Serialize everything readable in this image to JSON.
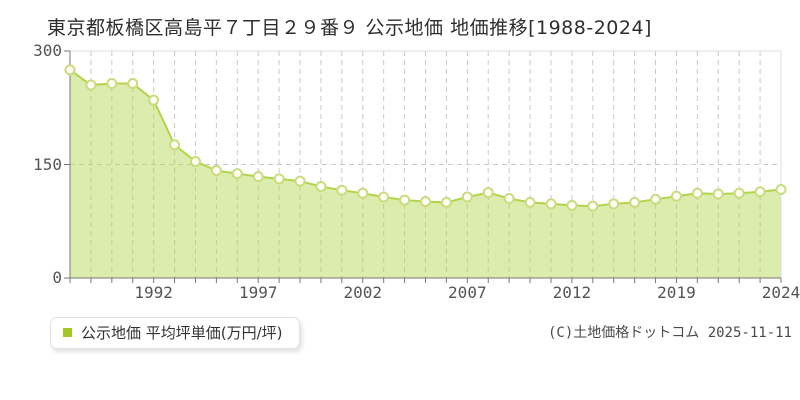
{
  "title": "東京都板橋区高島平７丁目２９番９ 公示地価 地価推移[1988-2024]",
  "legend": {
    "label": "公示地価 平均坪単価(万円/坪)",
    "swatch_color": "#a3c824"
  },
  "footer": {
    "copyright": "(C)土地価格ドットコム 2025-11-11"
  },
  "chart_data": {
    "type": "area",
    "title": "東京都板橋区高島平７丁目２９番９ 公示地価 地価推移[1988-2024]",
    "series_name": "公示地価 平均坪単価(万円/坪)",
    "ylabel": "万円/坪",
    "ylim": [
      0,
      300
    ],
    "y_ticks": [
      0,
      150,
      300
    ],
    "x": [
      1988,
      1989,
      1990,
      1991,
      1992,
      1993,
      1994,
      1995,
      1996,
      1997,
      1998,
      1999,
      2000,
      2001,
      2002,
      2003,
      2004,
      2005,
      2006,
      2007,
      2008,
      2009,
      2010,
      2011,
      2012,
      2015,
      2016,
      2017,
      2018,
      2019,
      2020,
      2021,
      2022,
      2023,
      2024
    ],
    "values": [
      275,
      255,
      257,
      257,
      235,
      176,
      154,
      142,
      138,
      134,
      131,
      128,
      121,
      116,
      112,
      107,
      103,
      101,
      100,
      107,
      113,
      105,
      100,
      98,
      96,
      95,
      98,
      100,
      104,
      108,
      112,
      111,
      112,
      114,
      117
    ],
    "x_tick_labels": [
      "1992",
      "1997",
      "2002",
      "2007",
      "2012",
      "2019",
      "2024"
    ],
    "x_tick_indices": [
      4,
      9,
      14,
      19,
      24,
      29,
      34
    ],
    "grid": true,
    "legend_position": "bottom-left",
    "colors": {
      "line": "#b2d44a",
      "fill": "#b2d44a",
      "fill_opacity": 0.45,
      "marker_fill": "#fffff6",
      "marker_stroke": "#c9dc80",
      "grid": "#c9c9c9",
      "axis": "#777777",
      "border": "#dddddd",
      "tick_text": "#555555",
      "title_text": "#2e2e2e"
    }
  }
}
